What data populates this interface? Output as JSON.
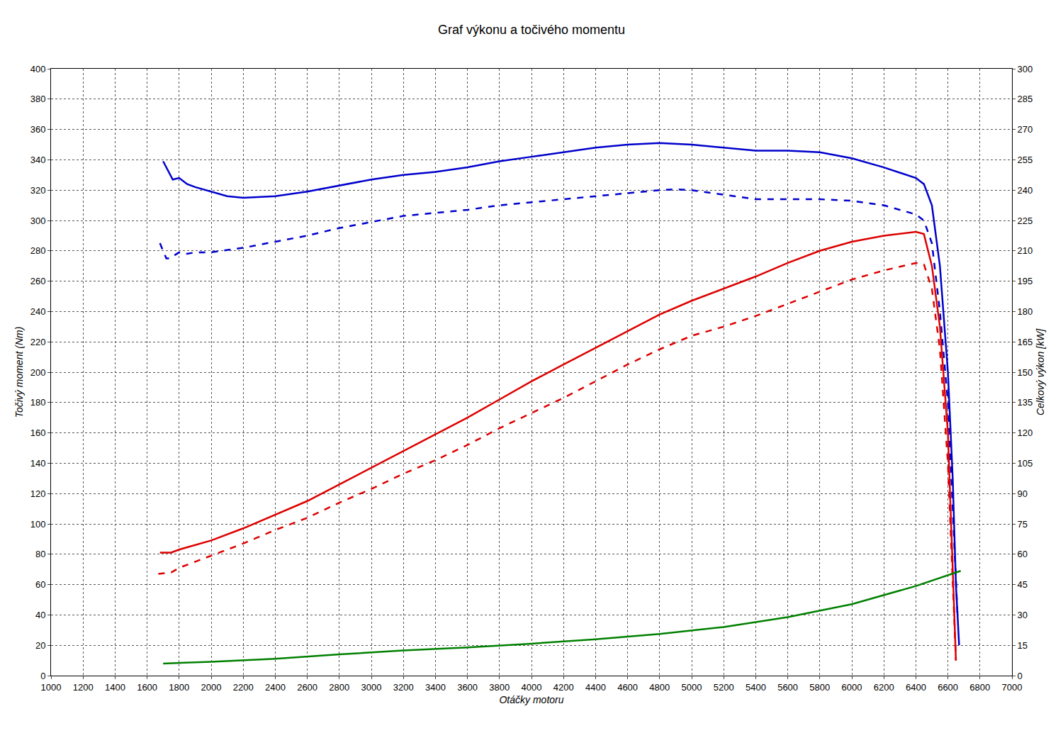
{
  "chart_data": {
    "type": "line",
    "title": "Graf výkonu a točivého momentu",
    "x_label": "Otáčky motoru",
    "y_label": "Točivý moment (Nm)",
    "y2_label": "Celkový výkon [kW]",
    "xlim": [
      1000,
      7000
    ],
    "xticks": [
      1000,
      1200,
      1400,
      1600,
      1800,
      2000,
      2200,
      2400,
      2600,
      2800,
      3000,
      3200,
      3400,
      3600,
      3800,
      4000,
      4200,
      4400,
      4600,
      4800,
      5000,
      5200,
      5400,
      5600,
      5800,
      6000,
      6200,
      6400,
      6600,
      6800,
      7000
    ],
    "ylim": [
      0,
      400
    ],
    "yticks": [
      0,
      20,
      40,
      60,
      80,
      100,
      120,
      140,
      160,
      180,
      200,
      220,
      240,
      260,
      280,
      300,
      320,
      340,
      360,
      380,
      400
    ],
    "y2lim": [
      0,
      300
    ],
    "y2ticks": [
      0,
      15,
      30,
      45,
      60,
      75,
      90,
      105,
      120,
      135,
      150,
      165,
      180,
      195,
      210,
      225,
      240,
      255,
      270,
      285,
      300
    ],
    "grid": true,
    "series": [
      {
        "color": "#0000cc",
        "line_style": "solid",
        "axis": "y",
        "x": [
          1700,
          1760,
          1800,
          1850,
          1900,
          2000,
          2100,
          2200,
          2400,
          2600,
          2800,
          3000,
          3200,
          3400,
          3600,
          3800,
          4000,
          4200,
          4400,
          4600,
          4800,
          5000,
          5200,
          5400,
          5600,
          5800,
          6000,
          6200,
          6400,
          6450,
          6500,
          6550,
          6600,
          6630,
          6650,
          6670
        ],
        "values": [
          339,
          327,
          328,
          324,
          322,
          319,
          316,
          315,
          316,
          319,
          323,
          327,
          330,
          332,
          335,
          339,
          342,
          345,
          348,
          350,
          351,
          350,
          348,
          346,
          346,
          345,
          341,
          335,
          328,
          324,
          310,
          270,
          200,
          130,
          60,
          20
        ]
      },
      {
        "color": "#0000cc",
        "line_style": "dash",
        "axis": "y",
        "x": [
          1680,
          1720,
          1740,
          1800,
          1850,
          1900,
          2000,
          2200,
          2400,
          2600,
          2800,
          3000,
          3200,
          3400,
          3600,
          3800,
          4000,
          4200,
          4400,
          4600,
          4800,
          4900,
          5000,
          5200,
          5400,
          5600,
          5800,
          6000,
          6200,
          6400,
          6450,
          6500,
          6550,
          6600,
          6630,
          6660
        ],
        "values": [
          285,
          275,
          275,
          279,
          278,
          279,
          279,
          282,
          286,
          290,
          295,
          299,
          303,
          305,
          307,
          310,
          312,
          314,
          316,
          318,
          320,
          320.5,
          320,
          317,
          314,
          314,
          314,
          313,
          310,
          304,
          300,
          285,
          240,
          180,
          110,
          40
        ]
      },
      {
        "color": "#dd0000",
        "line_style": "solid",
        "axis": "y2",
        "x": [
          1680,
          1750,
          1800,
          1900,
          2000,
          2200,
          2400,
          2600,
          2800,
          3000,
          3200,
          3400,
          3600,
          3800,
          4000,
          4200,
          4400,
          4600,
          4800,
          5000,
          5200,
          5400,
          5600,
          5800,
          6000,
          6200,
          6400,
          6450,
          6500,
          6550,
          6600,
          6640,
          6650
        ],
        "values": [
          60.8,
          60.8,
          62.3,
          64.5,
          66.8,
          72.8,
          79.5,
          86.3,
          94.5,
          102.8,
          111,
          119.3,
          127.5,
          136.5,
          145.5,
          153.8,
          162,
          170.3,
          178.5,
          185.3,
          191.3,
          197.3,
          204,
          210,
          214.5,
          217.5,
          219.4,
          218.3,
          202.5,
          172.5,
          120,
          30,
          7.5
        ]
      },
      {
        "color": "#dd0000",
        "line_style": "dash",
        "axis": "y2",
        "x": [
          1670,
          1750,
          1800,
          2000,
          2200,
          2400,
          2600,
          2800,
          3000,
          3200,
          3400,
          3600,
          3800,
          4000,
          4200,
          4400,
          4600,
          4800,
          5000,
          5200,
          5400,
          5600,
          5800,
          6000,
          6200,
          6400,
          6450,
          6500,
          6550,
          6600,
          6650
        ],
        "values": [
          50.3,
          51,
          53.3,
          59.3,
          65.3,
          72,
          78,
          85.5,
          92.3,
          99.8,
          106.5,
          114,
          122.3,
          129.8,
          137.3,
          145.5,
          153.8,
          161.3,
          168,
          172.5,
          177.8,
          183.8,
          189.8,
          195.8,
          200.3,
          204,
          203.3,
          191.3,
          161.3,
          105,
          7.5
        ]
      },
      {
        "color": "#008000",
        "line_style": "solid",
        "axis": "y2",
        "x": [
          1700,
          2000,
          2400,
          2800,
          3200,
          3600,
          4000,
          4400,
          4800,
          5200,
          5600,
          6000,
          6400,
          6680
        ],
        "values": [
          6,
          6.8,
          8.3,
          10.5,
          12.4,
          13.9,
          15.8,
          18,
          20.6,
          24,
          28.9,
          35.3,
          44.3,
          51.8
        ]
      }
    ]
  }
}
